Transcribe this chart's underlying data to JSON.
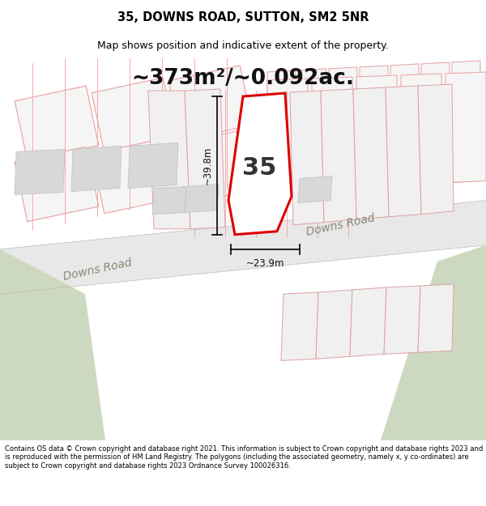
{
  "title_line1": "35, DOWNS ROAD, SUTTON, SM2 5NR",
  "title_line2": "Map shows position and indicative extent of the property.",
  "area_text": "~373m²/~0.092ac.",
  "dim_vertical": "~39.8m",
  "dim_horizontal": "~23.9m",
  "plot_number": "35",
  "road_label": "Downs Road",
  "road_label2": "Downs Road",
  "footer_text": "Contains OS data © Crown copyright and database right 2021. This information is subject to Crown copyright and database rights 2023 and is reproduced with the permission of HM Land Registry. The polygons (including the associated geometry, namely x, y co-ordinates) are subject to Crown copyright and database rights 2023 Ordnance Survey 100026316.",
  "map_bg": "#ffffff",
  "road_color": "#e8e8e8",
  "property_color": "#dd0000",
  "thin_line_color": "#f0a0a0",
  "building_fill": "#e8e8e8",
  "green_color": "#d0ddc8",
  "title_fontsize": 10.5,
  "subtitle_fontsize": 9,
  "area_fontsize": 19,
  "road_label_size": 10,
  "dim_fontsize": 8.5,
  "plot_num_fontsize": 22
}
